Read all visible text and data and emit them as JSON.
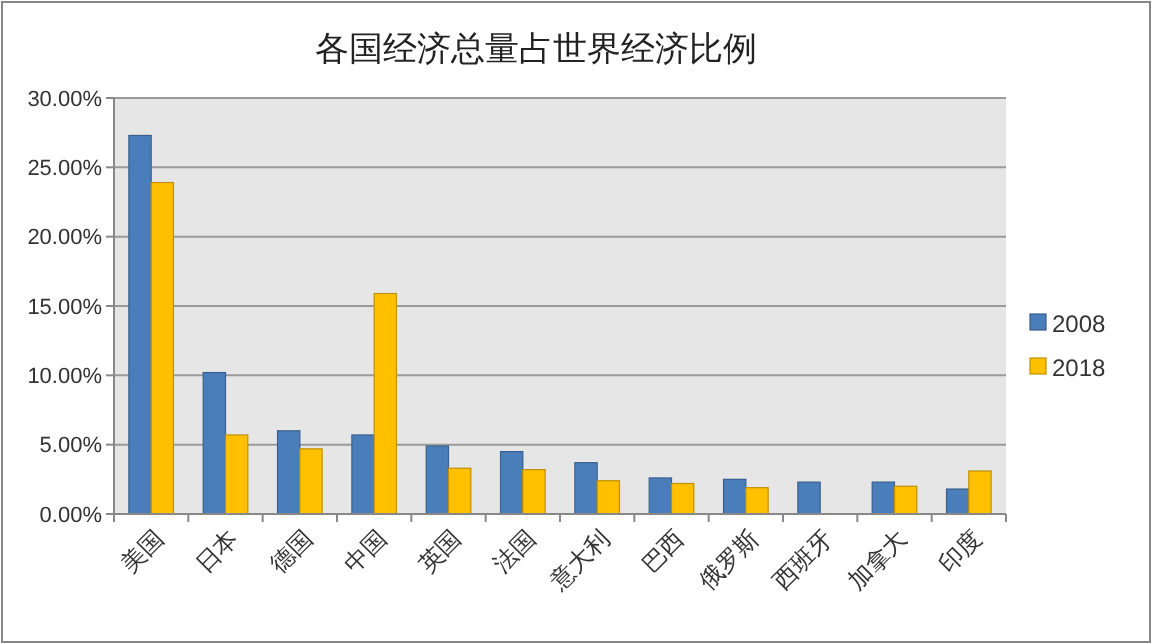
{
  "chart_data": {
    "type": "bar",
    "title": "各国经济总量占世界经济比例",
    "categories": [
      "美国",
      "日本",
      "德国",
      "中国",
      "英国",
      "法国",
      "意大利",
      "巴西",
      "俄罗斯",
      "西班牙",
      "加拿大",
      "印度"
    ],
    "series": [
      {
        "name": "2008",
        "color": "#4a7ebb",
        "values": [
          27.3,
          10.2,
          6.0,
          5.7,
          4.9,
          4.5,
          3.7,
          2.6,
          2.5,
          2.3,
          2.3,
          1.8
        ]
      },
      {
        "name": "2018",
        "color": "#ffc000",
        "values": [
          23.9,
          5.7,
          4.7,
          15.9,
          3.3,
          3.2,
          2.4,
          2.2,
          1.9,
          null,
          2.0,
          3.1
        ]
      }
    ],
    "ylim": [
      0,
      30
    ],
    "yticks": [
      {
        "value": 0,
        "label": "0.00%"
      },
      {
        "value": 5,
        "label": "5.00%"
      },
      {
        "value": 10,
        "label": "10.00%"
      },
      {
        "value": 15,
        "label": "15.00%"
      },
      {
        "value": 20,
        "label": "20.00%"
      },
      {
        "value": 25,
        "label": "25.00%"
      },
      {
        "value": 30,
        "label": "30.00%"
      }
    ],
    "grid": "y",
    "legend": "right"
  }
}
